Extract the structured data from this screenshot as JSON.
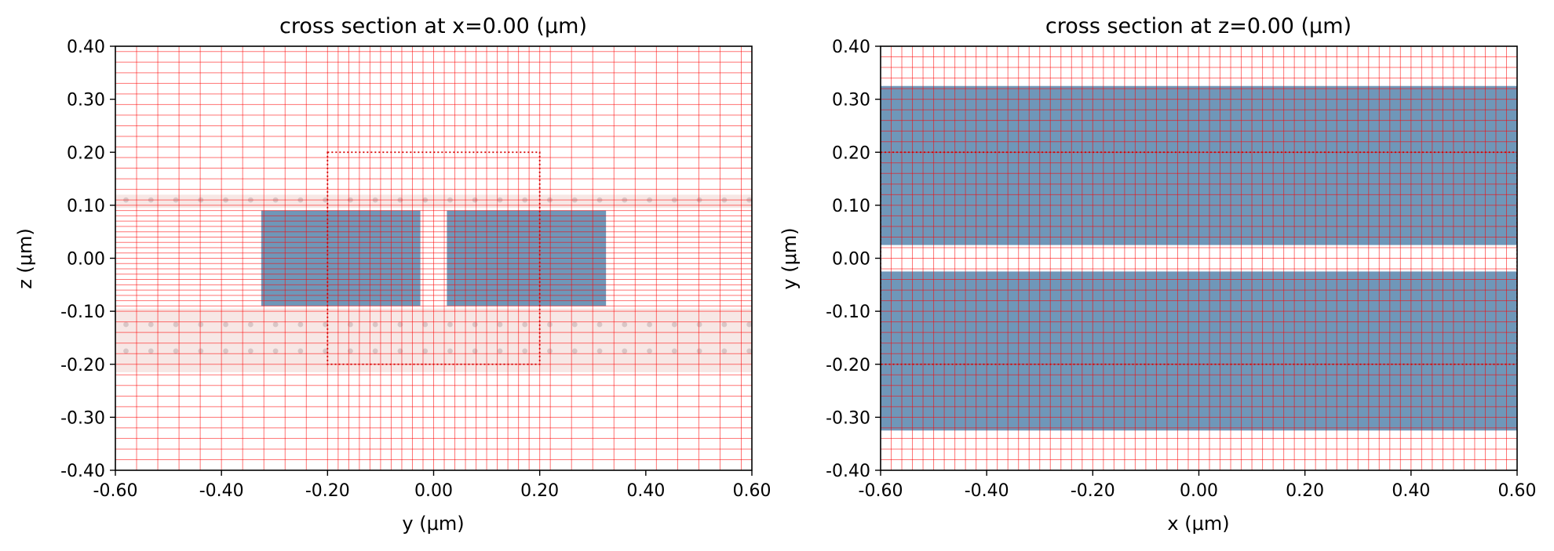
{
  "colors": {
    "structure": "#6f97b9",
    "grid": "#ff0000",
    "monitor_box": "#d40000",
    "pml_band": "#f7e7e5",
    "pml_dots": "#d8c6c6",
    "axis": "#000000"
  },
  "chart_data": [
    {
      "type": "heatmap",
      "title": "cross section at x=0.00 (μm)",
      "xlabel": "y (μm)",
      "ylabel": "z (μm)",
      "xlim": [
        -0.6,
        0.6
      ],
      "ylim": [
        -0.4,
        0.4
      ],
      "xticks": [
        "-0.60",
        "-0.40",
        "-0.20",
        "0.00",
        "0.20",
        "0.40",
        "0.60"
      ],
      "yticks": [
        "-0.40",
        "-0.30",
        "-0.20",
        "-0.10",
        "0.00",
        "0.10",
        "0.20",
        "0.30",
        "0.40"
      ],
      "structures": [
        {
          "x": [
            -0.325,
            -0.025
          ],
          "y": [
            -0.09,
            0.09
          ]
        },
        {
          "x": [
            0.025,
            0.325
          ],
          "y": [
            -0.09,
            0.09
          ]
        }
      ],
      "monitor_box": {
        "x": [
          -0.2,
          0.2
        ],
        "y": [
          -0.2,
          0.2
        ]
      },
      "shaded_bands": [
        {
          "y": [
            0.095,
            0.12
          ],
          "dots_at": [
            0.11
          ]
        },
        {
          "y": [
            -0.215,
            -0.095
          ],
          "dots_at": [
            -0.125,
            -0.175
          ]
        }
      ],
      "grid": {
        "x_coarse_step": 0.04,
        "x_fine_step": 0.02,
        "x_fine_range": [
          -0.2,
          0.2
        ],
        "y_coarse_step": 0.02,
        "y_fine_step": 0.01,
        "y_fine_range": [
          -0.1,
          0.1
        ]
      }
    },
    {
      "type": "heatmap",
      "title": "cross section at z=0.00 (μm)",
      "xlabel": "x (μm)",
      "ylabel": "y (μm)",
      "xlim": [
        -0.6,
        0.6
      ],
      "ylim": [
        -0.4,
        0.4
      ],
      "xticks": [
        "-0.60",
        "-0.40",
        "-0.20",
        "0.00",
        "0.20",
        "0.40",
        "0.60"
      ],
      "yticks": [
        "-0.40",
        "-0.30",
        "-0.20",
        "-0.10",
        "0.00",
        "0.10",
        "0.20",
        "0.30",
        "0.40"
      ],
      "structures": [
        {
          "x": [
            -0.6,
            0.6
          ],
          "y": [
            0.025,
            0.325
          ]
        },
        {
          "x": [
            -0.6,
            0.6
          ],
          "y": [
            -0.325,
            -0.025
          ]
        }
      ],
      "monitor_box": {
        "x": [
          -0.6,
          0.6
        ],
        "y": [
          -0.2,
          0.2
        ]
      },
      "shaded_bands": [],
      "grid": {
        "x_coarse_step": 0.02,
        "x_fine_step": 0.02,
        "x_fine_range": [
          -0.6,
          0.6
        ],
        "y_coarse_step": 0.02,
        "y_fine_step": 0.02,
        "y_fine_range": [
          -0.4,
          0.4
        ]
      }
    }
  ]
}
